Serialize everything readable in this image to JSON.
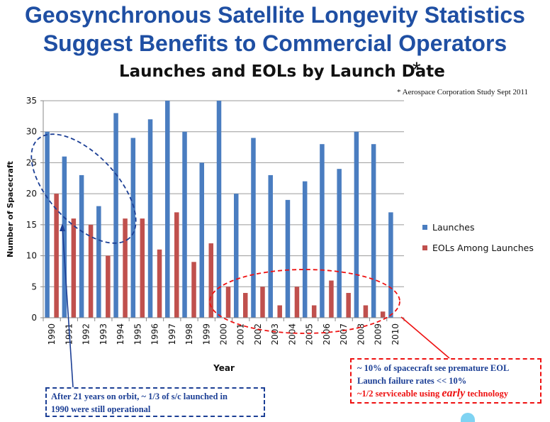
{
  "title_line1": "Geosynchronous Satellite Longevity Statistics",
  "title_line2": "Suggest Benefits to Commercial Operators",
  "asterisk": "*",
  "source_note": "* Aerospace Corporation Study Sept 2011",
  "chart_data": {
    "type": "bar",
    "title": "Launches and EOLs by Launch Date",
    "xlabel": "Year",
    "ylabel": "Number of Spacecraft",
    "ylim": [
      0,
      35
    ],
    "yticks": [
      0,
      5,
      10,
      15,
      20,
      25,
      30,
      35
    ],
    "grid": true,
    "legend_position": "right",
    "categories": [
      "1990",
      "1991",
      "1992",
      "1993",
      "1994",
      "1995",
      "1996",
      "1997",
      "1998",
      "1999",
      "2000",
      "2001",
      "2002",
      "2003",
      "2004",
      "2005",
      "2006",
      "2007",
      "2008",
      "2009",
      "2010"
    ],
    "series": [
      {
        "name": "Launches",
        "color": "#4a7dc0",
        "values": [
          30,
          26,
          23,
          18,
          33,
          29,
          32,
          35,
          30,
          25,
          35,
          20,
          29,
          23,
          19,
          22,
          28,
          24,
          30,
          28,
          17
        ]
      },
      {
        "name": "EOLs Among Launches",
        "color": "#c0504d",
        "values": [
          20,
          16,
          15,
          10,
          16,
          16,
          11,
          17,
          9,
          12,
          5,
          4,
          5,
          2,
          5,
          2,
          6,
          4,
          2,
          1,
          0
        ]
      }
    ]
  },
  "callouts": {
    "blue": {
      "line1": "After 21 years on orbit, ~ 1/3 of s/c launched in",
      "line2": "1990 were still operational",
      "color": "#1c3f95"
    },
    "red": {
      "line1": "~ 10% of spacecraft see premature EOL",
      "line2": "Launch failure rates << 10%",
      "line3_pre": "~1/2 serviceable using ",
      "line3_em": "early",
      "line3_post": " technology",
      "color": "#ee1111"
    }
  }
}
